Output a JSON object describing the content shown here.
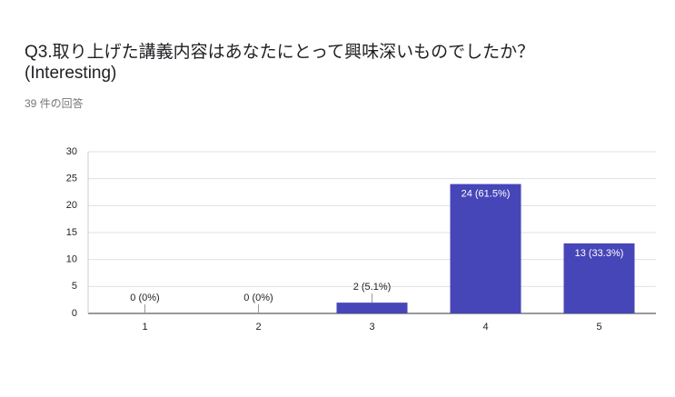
{
  "chart_data": {
    "type": "bar",
    "title": [
      "Q3.取り上げた講義内容はあなたにとって興味深いものでしたか？",
      "(Interesting)"
    ],
    "subtitle": "39 件の回答",
    "categories": [
      "1",
      "2",
      "3",
      "4",
      "5"
    ],
    "values": [
      0,
      0,
      2,
      24,
      13
    ],
    "value_labels": [
      "0 (0%)",
      "0 (0%)",
      "2 (5.1%)",
      "24 (61.5%)",
      "13 (33.3%)"
    ],
    "color": "#4646b8",
    "ylim": [
      0,
      30
    ],
    "yticks": [
      0,
      5,
      10,
      15,
      20,
      25,
      30
    ],
    "grid": true
  }
}
